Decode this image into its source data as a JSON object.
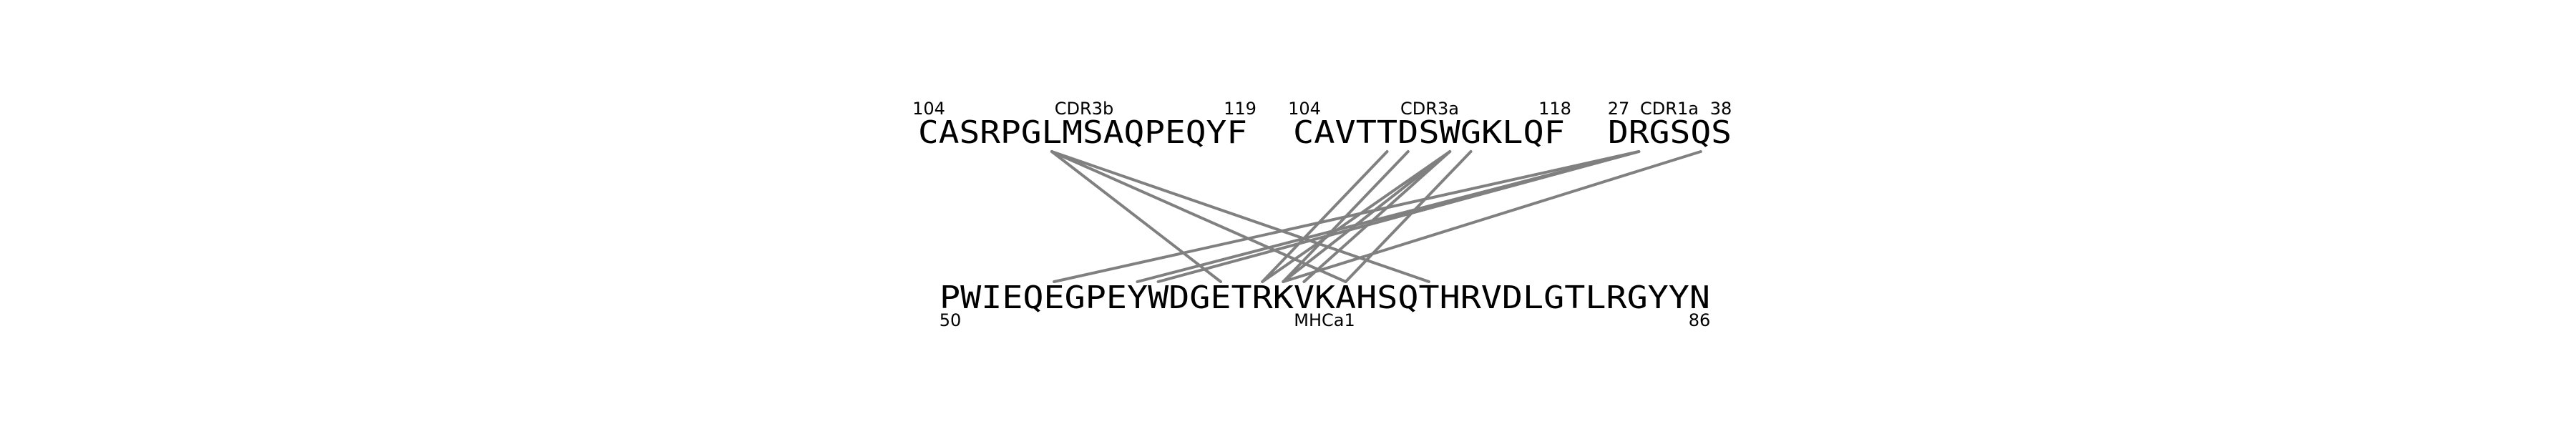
{
  "top_segments": [
    {
      "id": "cdr3b",
      "sequence": "CASRPGLMSAQPEQYF",
      "region": "CDR3b",
      "start": "104",
      "end": "119"
    },
    {
      "id": "cdr3a",
      "sequence": "CAVTTDSWGKLQF",
      "region": "CDR3a",
      "start": "104",
      "end": "118"
    },
    {
      "id": "cdr1a",
      "sequence": "DRGSQS",
      "region": "CDR1a",
      "start": "27",
      "end": "38"
    }
  ],
  "bottom_segment": {
    "id": "mhca1",
    "sequence": "PWIEQEGPEYWDGETRKVKAHSQTHRVDLGTLRGYYN",
    "region": "MHCa1",
    "start": "50",
    "end": "86"
  },
  "contacts": [
    {
      "from_segment": "cdr3b",
      "from_index": 6,
      "to_index": 13
    },
    {
      "from_segment": "cdr3b",
      "from_index": 6,
      "to_index": 19
    },
    {
      "from_segment": "cdr3b",
      "from_index": 6,
      "to_index": 23
    },
    {
      "from_segment": "cdr3a",
      "from_index": 4,
      "to_index": 15
    },
    {
      "from_segment": "cdr3a",
      "from_index": 5,
      "to_index": 16
    },
    {
      "from_segment": "cdr3a",
      "from_index": 7,
      "to_index": 15
    },
    {
      "from_segment": "cdr3a",
      "from_index": 7,
      "to_index": 16
    },
    {
      "from_segment": "cdr3a",
      "from_index": 7,
      "to_index": 17
    },
    {
      "from_segment": "cdr3a",
      "from_index": 8,
      "to_index": 19
    },
    {
      "from_segment": "cdr1a",
      "from_index": 1,
      "to_index": 5
    },
    {
      "from_segment": "cdr1a",
      "from_index": 1,
      "to_index": 9
    },
    {
      "from_segment": "cdr1a",
      "from_index": 1,
      "to_index": 10
    },
    {
      "from_segment": "cdr1a",
      "from_index": 4,
      "to_index": 16
    }
  ],
  "colors": {
    "line": "#808080",
    "text": "#000000",
    "background": "#ffffff"
  }
}
